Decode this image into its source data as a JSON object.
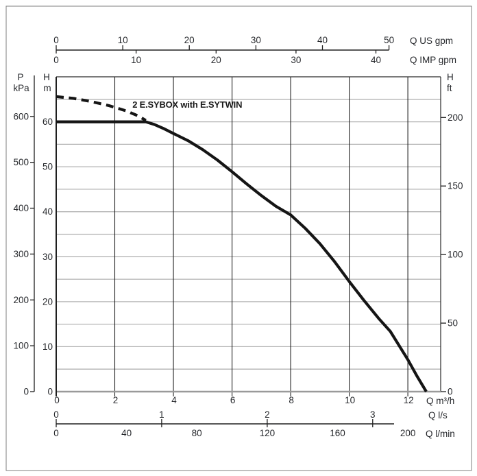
{
  "page": {
    "background": "#ffffff",
    "border_color": "#7f7f7f"
  },
  "colors": {
    "text": "#26282c",
    "grid_gray": "#b3b3b3",
    "baseline_gray": "#9a9a9a",
    "axis_black": "#1f1f1f",
    "curve_black": "#151515"
  },
  "chart_data": {
    "type": "line",
    "title": "",
    "annotation": {
      "text": "2 E.SYBOX with E.SYTWIN",
      "anchor_m3h_m": [
        2.6,
        63.1
      ]
    },
    "x_range_m3h": [
      0,
      13.12
    ],
    "y_range_m": [
      0,
      70
    ],
    "grid": {
      "horizontal_step_m": 5,
      "vertical_step_m3h": 2
    },
    "x_axes": [
      {
        "id": "q_m3h",
        "unit_label": "Q m³/h",
        "ticks": [
          0,
          2,
          4,
          6,
          8,
          10,
          12
        ],
        "to_m3h": 1,
        "position": "bottom-frame"
      },
      {
        "id": "q_ls",
        "unit_label": "Q l/s",
        "ticks": [
          0,
          1,
          2,
          3
        ],
        "to_m3h": 3.6,
        "position": "bottom-shared"
      },
      {
        "id": "q_lmin",
        "unit_label": "Q l/min",
        "ticks": [
          0,
          40,
          80,
          120,
          160,
          200
        ],
        "to_m3h": 0.06,
        "position": "bottom-shared"
      },
      {
        "id": "q_us_gpm",
        "unit_label": "Q US gpm",
        "ticks": [
          0,
          10,
          20,
          30,
          40,
          50
        ],
        "to_m3h": 0.227125,
        "position": "top"
      },
      {
        "id": "q_imp_gpm",
        "unit_label": "Q IMP gpm",
        "ticks": [
          0,
          10,
          20,
          30,
          40
        ],
        "to_m3h": 0.272766,
        "position": "top"
      }
    ],
    "y_axes": [
      {
        "id": "p_kpa",
        "header": [
          "P",
          "kPa"
        ],
        "ticks": [
          0,
          100,
          200,
          300,
          400,
          500,
          600
        ],
        "to_m": 0.10197,
        "position": "far-left"
      },
      {
        "id": "h_m",
        "header": [
          "H",
          "m"
        ],
        "ticks": [
          0,
          10,
          20,
          30,
          40,
          50,
          60
        ],
        "to_m": 1,
        "position": "left"
      },
      {
        "id": "h_ft",
        "header": [
          "H",
          "ft"
        ],
        "ticks": [
          0,
          50,
          100,
          150,
          200
        ],
        "to_m": 0.3048,
        "position": "right"
      }
    ],
    "series": [
      {
        "id": "curve-solid",
        "style": "solid",
        "points_m3h_m": [
          [
            0,
            60
          ],
          [
            3.06,
            60
          ],
          [
            3.35,
            59.4
          ],
          [
            3.7,
            58.4
          ],
          [
            4,
            57.4
          ],
          [
            4.5,
            55.8
          ],
          [
            5,
            53.8
          ],
          [
            5.5,
            51.5
          ],
          [
            6,
            48.9
          ],
          [
            6.5,
            46.2
          ],
          [
            7,
            43.6
          ],
          [
            7.5,
            41.2
          ],
          [
            8,
            39.3
          ],
          [
            8.5,
            36.3
          ],
          [
            9,
            32.9
          ],
          [
            9.5,
            28.9
          ],
          [
            10,
            24.5
          ],
          [
            10.5,
            20.3
          ],
          [
            11,
            16.3
          ],
          [
            11.4,
            13.4
          ],
          [
            12,
            7.1
          ],
          [
            12.3,
            3.6
          ],
          [
            12.63,
            0
          ]
        ]
      },
      {
        "id": "curve-dashed",
        "style": "dashed",
        "points_m3h_m": [
          [
            0,
            65.6
          ],
          [
            0.6,
            65.2
          ],
          [
            1.2,
            64.5
          ],
          [
            1.8,
            63.6
          ],
          [
            2.4,
            62.4
          ],
          [
            2.8,
            61.3
          ],
          [
            3.06,
            60.3
          ]
        ]
      }
    ]
  }
}
